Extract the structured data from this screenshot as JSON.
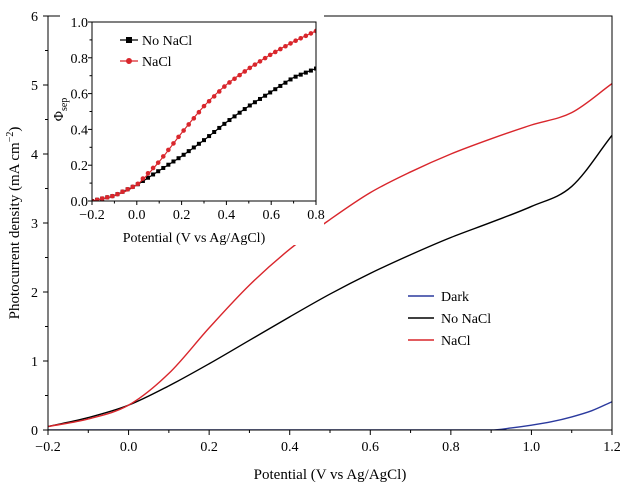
{
  "chart_data": [
    {
      "type": "line",
      "role": "main",
      "xlabel": "Potential (V vs Ag/AgCl)",
      "ylabel_parts": [
        "Photocurrent density (mA cm",
        "−2",
        ")"
      ],
      "xlim": [
        -0.2,
        1.2
      ],
      "ylim": [
        0,
        6
      ],
      "xticks": [
        "−0.2",
        "0.0",
        "0.2",
        "0.4",
        "0.6",
        "0.8",
        "1.0",
        "1.2"
      ],
      "xtick_values": [
        -0.2,
        0.0,
        0.2,
        0.4,
        0.6,
        0.8,
        1.0,
        1.2
      ],
      "yticks": [
        "0",
        "1",
        "2",
        "3",
        "4",
        "5",
        "6"
      ],
      "ytick_values": [
        0,
        1,
        2,
        3,
        4,
        5,
        6
      ],
      "grid": false,
      "legend_position": "center-right",
      "series": [
        {
          "name": "Dark",
          "color": "#2b3a9e",
          "x": [
            -0.2,
            0.9,
            0.95,
            1.0,
            1.05,
            1.1,
            1.15,
            1.2
          ],
          "y": [
            0.0,
            0.0,
            0.03,
            0.07,
            0.12,
            0.19,
            0.28,
            0.41
          ]
        },
        {
          "name": "No NaCl",
          "color": "#000000",
          "x": [
            -0.2,
            -0.1,
            0.0,
            0.1,
            0.2,
            0.3,
            0.4,
            0.5,
            0.6,
            0.7,
            0.8,
            0.9,
            1.0,
            1.1,
            1.2
          ],
          "y": [
            0.05,
            0.18,
            0.36,
            0.64,
            0.96,
            1.3,
            1.64,
            1.97,
            2.27,
            2.54,
            2.79,
            3.01,
            3.24,
            3.53,
            4.27
          ]
        },
        {
          "name": "NaCl",
          "color": "#d9262c",
          "x": [
            -0.2,
            -0.1,
            0.0,
            0.1,
            0.2,
            0.3,
            0.4,
            0.5,
            0.6,
            0.7,
            0.8,
            0.9,
            1.0,
            1.1,
            1.2
          ],
          "y": [
            0.05,
            0.16,
            0.36,
            0.82,
            1.48,
            2.1,
            2.62,
            3.05,
            3.44,
            3.74,
            4.0,
            4.22,
            4.42,
            4.6,
            5.02
          ]
        }
      ]
    },
    {
      "type": "line",
      "role": "inset",
      "xlabel": "Potential (V vs Ag/AgCl)",
      "ylabel_parts": [
        "Φ",
        "sep"
      ],
      "xlim": [
        -0.2,
        0.8
      ],
      "ylim": [
        0,
        1
      ],
      "xticks": [
        "−0.2",
        "0.0",
        "0.2",
        "0.4",
        "0.6",
        "0.8"
      ],
      "xtick_values": [
        -0.2,
        0.0,
        0.2,
        0.4,
        0.6,
        0.8
      ],
      "yticks": [
        "0.0",
        "0.2",
        "0.4",
        "0.6",
        "0.8",
        "1.0"
      ],
      "ytick_values": [
        0,
        0.2,
        0.4,
        0.6,
        0.8,
        1.0
      ],
      "grid": false,
      "legend_position": "top-left",
      "series": [
        {
          "name": "No NaCl",
          "color": "#000000",
          "marker": "square",
          "x": [
            -0.2,
            -0.1,
            0.0,
            0.1,
            0.2,
            0.3,
            0.4,
            0.5,
            0.6,
            0.7,
            0.8
          ],
          "y": [
            0.0,
            0.03,
            0.09,
            0.17,
            0.25,
            0.34,
            0.44,
            0.53,
            0.61,
            0.69,
            0.74
          ]
        },
        {
          "name": "NaCl",
          "color": "#d9262c",
          "marker": "circle",
          "x": [
            -0.2,
            -0.1,
            0.0,
            0.1,
            0.2,
            0.3,
            0.4,
            0.5,
            0.6,
            0.7,
            0.8
          ],
          "y": [
            0.0,
            0.03,
            0.09,
            0.22,
            0.38,
            0.53,
            0.65,
            0.74,
            0.82,
            0.89,
            0.95
          ]
        }
      ]
    }
  ]
}
